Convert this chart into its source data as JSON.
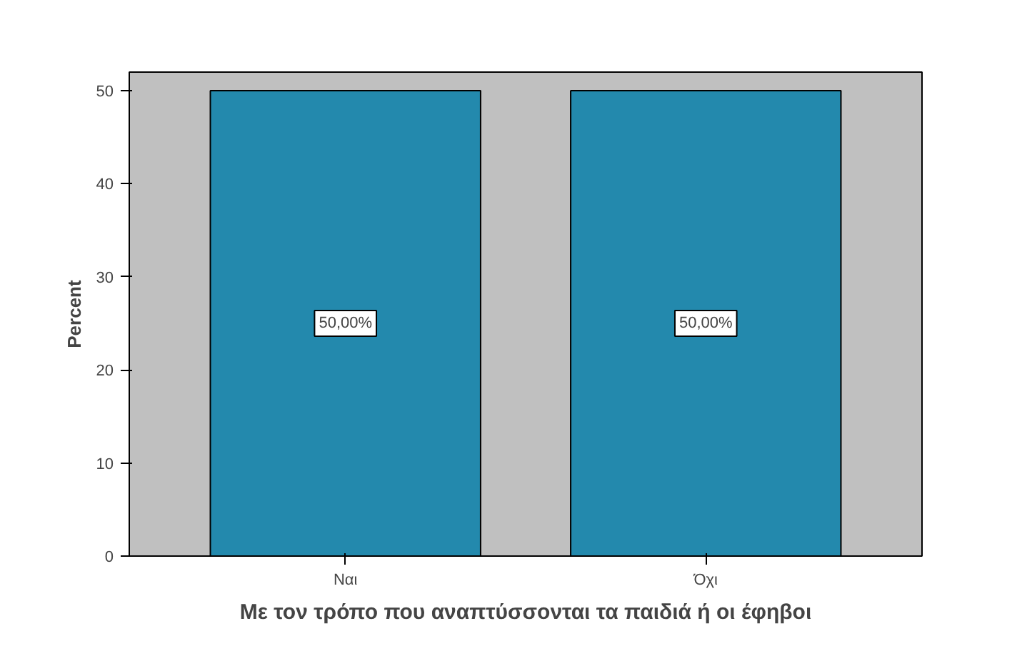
{
  "chart_data": {
    "type": "bar",
    "xlabel": "Με τον τρόπο που αναπτύσσονται τα παιδιά ή οι έφηβοι",
    "ylabel": "Percent",
    "categories": [
      "Ναι",
      "Όχι"
    ],
    "values": [
      50,
      50
    ],
    "value_labels": [
      "50,00%",
      "50,00%"
    ],
    "color": "#2389ad",
    "ylim": [
      0,
      52
    ],
    "yticks": [
      0,
      10,
      20,
      30,
      40,
      50
    ],
    "grid": false
  }
}
